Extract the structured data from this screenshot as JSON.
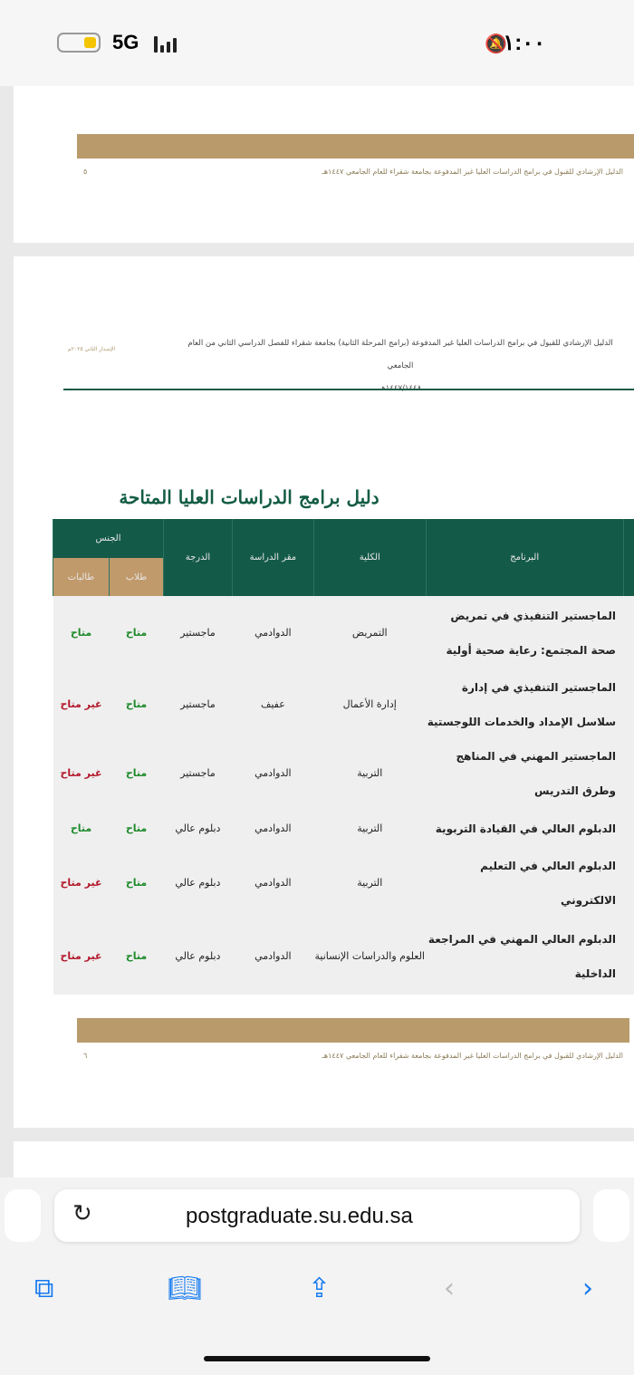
{
  "status": {
    "network": "5G",
    "time": "١:٠٠",
    "battery_level": 0.3
  },
  "page1": {
    "footer": "الدليل الإرشادي للقبول في برامج الدراسات العليا غير المدفوعة بجامعة شقراء للعام الجامعي ١٤٤٧هـ",
    "page_number": "٥"
  },
  "page2": {
    "header_line1": "الدليل الإرشادي للقبول في برامج الدراسات العليا غير المدفوعة (برامج المرحلة الثانية) بجامعة شقراء للفصل الدراسي الثاني من العام الجامعي",
    "header_line2": "١٤٤٧/١٤٤٨هـ",
    "edition": "الإصدار الثاني ٢٠٢٥م",
    "title": "دليل برامج الدراسات العليا المتاحة",
    "table": {
      "headers": {
        "program": "البرنامج",
        "college": "الكلية",
        "location": "مقر الدراسة",
        "degree": "الدرجة",
        "gender": "الجنس",
        "male": "طلاب",
        "female": "طالبات"
      },
      "rows": [
        {
          "program": "الماجستير التنفيذي في تمريض صحة المجتمع: رعاية صحية أولية",
          "college": "التمريض",
          "location": "الدوادمي",
          "degree": "ماجستير",
          "male": "متاح",
          "female": "متاح"
        },
        {
          "program": "الماجستير التنفيذي في إدارة سلاسل الإمداد والخدمات اللوجستية",
          "college": "إدارة الأعمال",
          "location": "عفيف",
          "degree": "ماجستير",
          "male": "متاح",
          "female": "غير متاح"
        },
        {
          "program": "الماجستير المهني في المناهج وطرق التدريس",
          "college": "التربية",
          "location": "الدوادمي",
          "degree": "ماجستير",
          "male": "متاح",
          "female": "غير متاح"
        },
        {
          "program": "الدبلوم العالي في القيادة التربوية",
          "college": "التربية",
          "location": "الدوادمي",
          "degree": "دبلوم عالي",
          "male": "متاح",
          "female": "متاح"
        },
        {
          "program": "الدبلوم العالي في التعليم الالكتروني",
          "college": "التربية",
          "location": "الدوادمي",
          "degree": "دبلوم عالي",
          "male": "متاح",
          "female": "غير متاح"
        },
        {
          "program": "الدبلوم العالي المهني في المراجعة الداخلية",
          "college": "العلوم والدراسات الإنسانية",
          "location": "الدوادمي",
          "degree": "دبلوم عالي",
          "male": "متاح",
          "female": "غير متاح"
        }
      ]
    },
    "footer": "الدليل الإرشادي للقبول في برامج الدراسات العليا غير المدفوعة بجامعة شقراء للعام الجامعي ١٤٤٧هـ",
    "page_number": "٦"
  },
  "browser": {
    "url": "postgraduate.su.edu.sa"
  },
  "colors": {
    "header_green": "#145a48",
    "gold": "#c19a6b",
    "available": "#1d8a2a",
    "unavailable": "#b3172a",
    "accent": "#1479f0"
  }
}
